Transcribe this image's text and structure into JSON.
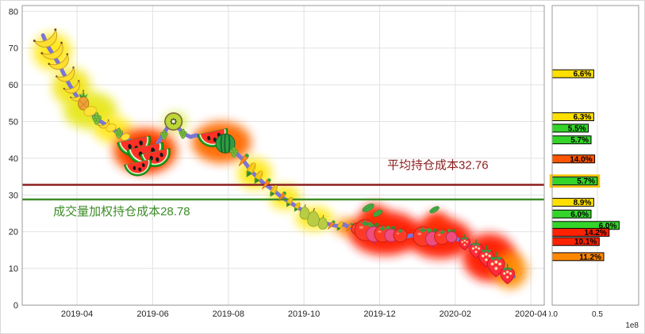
{
  "figure": {
    "bg": "#ffffff",
    "plot_bg": "#ffffff",
    "border_color": "#9a9a9a",
    "grid_color": "#e2e2e2",
    "tick_color": "#262626"
  },
  "chart_data": [
    {
      "name": "price-history-with-fruit-markers",
      "type": "line",
      "title": "",
      "xlabel": "",
      "ylabel": "",
      "ylim": [
        0,
        81.5
      ],
      "y_ticks": [
        0,
        10,
        20,
        30,
        40,
        50,
        60,
        70,
        80
      ],
      "x_ticks": [
        {
          "month": 1,
          "label": "2019-04"
        },
        {
          "month": 3,
          "label": "2019-06"
        },
        {
          "month": 5,
          "label": "2019-08"
        },
        {
          "month": 7,
          "label": "2019-10"
        },
        {
          "month": 9,
          "label": "2019-12"
        },
        {
          "month": 11,
          "label": "2020-02"
        },
        {
          "month": 13,
          "label": "2020-04"
        }
      ],
      "line_color": "#7c74d8",
      "price_line": [
        [
          0.1,
          73.5
        ],
        [
          0.2,
          71
        ],
        [
          0.35,
          68.5
        ],
        [
          0.5,
          66
        ],
        [
          0.65,
          63
        ],
        [
          0.8,
          60
        ],
        [
          0.95,
          57.5
        ],
        [
          1.1,
          55.5
        ],
        [
          1.25,
          53.5
        ],
        [
          1.4,
          52
        ],
        [
          1.55,
          50.5
        ],
        [
          1.7,
          49.5
        ],
        [
          1.85,
          48.5
        ],
        [
          2.0,
          47.5
        ],
        [
          2.15,
          46.5
        ],
        [
          2.3,
          45.5
        ],
        [
          2.5,
          44
        ],
        [
          2.65,
          43
        ],
        [
          2.8,
          42.2
        ],
        [
          2.95,
          41.8
        ],
        [
          3.1,
          43.5
        ],
        [
          3.25,
          46
        ],
        [
          3.4,
          48.5
        ],
        [
          3.55,
          50
        ],
        [
          3.7,
          48
        ],
        [
          3.85,
          46.5
        ],
        [
          4.0,
          45.8
        ],
        [
          4.15,
          46.3
        ],
        [
          4.3,
          45.8
        ],
        [
          4.45,
          45.2
        ],
        [
          4.6,
          45.8
        ],
        [
          4.75,
          46.2
        ],
        [
          4.9,
          44.5
        ],
        [
          5.05,
          43
        ],
        [
          5.2,
          41.5
        ],
        [
          5.35,
          40
        ],
        [
          5.5,
          38
        ],
        [
          5.65,
          36
        ],
        [
          5.8,
          34.5
        ],
        [
          5.95,
          33
        ],
        [
          6.1,
          32
        ],
        [
          6.25,
          30.8
        ],
        [
          6.4,
          29.5
        ],
        [
          6.55,
          28.5
        ],
        [
          6.7,
          27.5
        ],
        [
          6.85,
          26.5
        ],
        [
          7.0,
          25.5
        ],
        [
          7.15,
          24.5
        ],
        [
          7.3,
          23.5
        ],
        [
          7.45,
          22.8
        ],
        [
          7.6,
          22.2
        ],
        [
          7.75,
          21.8
        ],
        [
          7.9,
          21.5
        ],
        [
          8.05,
          22
        ],
        [
          8.2,
          21.2
        ],
        [
          8.35,
          20.8
        ],
        [
          8.5,
          20.5
        ],
        [
          8.65,
          20.2
        ],
        [
          8.8,
          19.8
        ],
        [
          8.95,
          19.4
        ],
        [
          9.1,
          19
        ],
        [
          9.25,
          19.4
        ],
        [
          9.4,
          18.8
        ],
        [
          9.55,
          19.3
        ],
        [
          9.7,
          18.6
        ],
        [
          9.85,
          19
        ],
        [
          10.0,
          18.4
        ],
        [
          10.15,
          18.8
        ],
        [
          10.3,
          18.2
        ],
        [
          10.45,
          18.8
        ],
        [
          10.6,
          18.4
        ],
        [
          10.75,
          19
        ],
        [
          10.9,
          18.5
        ],
        [
          11.05,
          18
        ],
        [
          11.2,
          17.3
        ],
        [
          11.35,
          16.5
        ],
        [
          11.5,
          15.6
        ],
        [
          11.65,
          14.6
        ],
        [
          11.8,
          13.5
        ],
        [
          11.95,
          12.4
        ],
        [
          12.1,
          11.2
        ],
        [
          12.25,
          10
        ],
        [
          12.4,
          8.8
        ],
        [
          12.55,
          7.8
        ]
      ],
      "cost_lines": [
        {
          "id": "avg",
          "label": "平均持仓成本32.76",
          "value": 32.76,
          "color": "#8b1e1e",
          "label_month": 9.2,
          "label_offset": -20
        },
        {
          "id": "vwap",
          "label": "成交量加权持仓成本28.78",
          "value": 28.78,
          "color": "#3c8c28",
          "label_month": 0.37,
          "label_offset": 20
        }
      ],
      "markers": [
        [
          0.15,
          73.5,
          "banana",
          30
        ],
        [
          0.33,
          70,
          "banana",
          28
        ],
        [
          0.5,
          67,
          "banana",
          26
        ],
        [
          0.68,
          63.5,
          "banana",
          24
        ],
        [
          0.85,
          60,
          "banana",
          21
        ],
        [
          1.0,
          57.5,
          "banana",
          18
        ],
        [
          1.17,
          55.5,
          "pineapple",
          22
        ],
        [
          1.35,
          52.8,
          "lemon",
          16
        ],
        [
          1.52,
          51,
          "grapes",
          15
        ],
        [
          1.7,
          49.7,
          "banana",
          14
        ],
        [
          1.9,
          48.3,
          "lemon",
          13
        ],
        [
          2.1,
          47,
          "grapes",
          13
        ],
        [
          2.28,
          45.8,
          "lemon",
          11
        ],
        [
          2.52,
          44,
          "watermelon",
          42
        ],
        [
          2.82,
          42,
          "watermelon",
          46
        ],
        [
          3.08,
          40.8,
          "watermelon",
          38
        ],
        [
          2.62,
          38,
          "watermelon",
          34
        ],
        [
          3.55,
          50,
          "kiwi",
          22
        ],
        [
          3.3,
          46.5,
          "grapes",
          12
        ],
        [
          3.8,
          46.8,
          "grapes",
          12
        ],
        [
          4.6,
          46.2,
          "watermelon",
          38
        ],
        [
          4.92,
          44,
          "melon",
          24
        ],
        [
          5.15,
          41.8,
          "grapes",
          13
        ],
        [
          5.4,
          39.5,
          "carrot",
          18
        ],
        [
          5.6,
          37,
          "corn",
          19
        ],
        [
          5.8,
          35,
          "corn",
          17
        ],
        [
          6.0,
          33,
          "carrot",
          16
        ],
        [
          6.2,
          31.2,
          "corn",
          15
        ],
        [
          6.42,
          29.6,
          "carrot",
          14
        ],
        [
          6.62,
          28.2,
          "corn",
          13
        ],
        [
          6.82,
          26.8,
          "corn",
          12
        ],
        [
          7.02,
          25.3,
          "pear",
          18
        ],
        [
          7.25,
          23.8,
          "pear",
          22
        ],
        [
          7.5,
          22.5,
          "pear",
          17
        ],
        [
          7.72,
          21.8,
          "carrot",
          13
        ],
        [
          7.95,
          21.6,
          "corn",
          12
        ],
        [
          8.2,
          21.2,
          "carrot",
          12
        ],
        [
          8.4,
          20.8,
          "tomato",
          15
        ],
        [
          8.62,
          20.4,
          "tomato",
          28
        ],
        [
          8.85,
          19.6,
          "radish",
          24
        ],
        [
          9.08,
          19.4,
          "tomato",
          22
        ],
        [
          9.3,
          19.2,
          "radish",
          20
        ],
        [
          9.55,
          19,
          "tomato",
          18
        ],
        [
          8.7,
          26.5,
          "leaf",
          16
        ],
        [
          8.95,
          25,
          "leaf",
          13
        ],
        [
          10.15,
          18.7,
          "tomato",
          26
        ],
        [
          10.4,
          18.3,
          "radish",
          22
        ],
        [
          10.65,
          18.6,
          "tomato",
          20
        ],
        [
          10.9,
          18.7,
          "radish",
          17
        ],
        [
          10.45,
          26,
          "leaf",
          13
        ],
        [
          11.25,
          17.2,
          "strawberry",
          20
        ],
        [
          11.55,
          15.4,
          "strawberry",
          24
        ],
        [
          11.82,
          13.4,
          "strawberry",
          28
        ],
        [
          12.08,
          11.2,
          "strawberry",
          32
        ],
        [
          12.38,
          8.6,
          "strawberry",
          26
        ]
      ],
      "blobs": [
        [
          0.35,
          69,
          0.5,
          5,
          "#ffe818",
          0.95
        ],
        [
          0.85,
          59.5,
          0.5,
          5,
          "#f2e416",
          0.93
        ],
        [
          1.35,
          53,
          0.7,
          5,
          "#e6e616",
          0.92
        ],
        [
          1.95,
          47.8,
          0.5,
          3.6,
          "#ffe818",
          0.92
        ],
        [
          3.6,
          49.8,
          0.3,
          2.6,
          "#d6e838",
          0.9
        ],
        [
          2.8,
          42,
          0.85,
          6.2,
          "#ff5400",
          0.96
        ],
        [
          2.8,
          41.5,
          0.5,
          4.4,
          "#ff1c00",
          0.9
        ],
        [
          4.82,
          44.3,
          0.78,
          5.6,
          "#ff6a00",
          0.96
        ],
        [
          5.7,
          35.8,
          0.45,
          4.2,
          "#ffe818",
          0.95
        ],
        [
          6.5,
          29.3,
          0.4,
          3.3,
          "#ffe818",
          0.95
        ],
        [
          7.28,
          23.6,
          0.5,
          3.2,
          "#ffe818",
          0.95
        ],
        [
          8.15,
          21.3,
          0.35,
          2.3,
          "#ff9000",
          0.92
        ],
        [
          9.15,
          19.6,
          0.95,
          6.0,
          "#ff1c00",
          0.96
        ],
        [
          8.85,
          24,
          0.35,
          3.5,
          "#ff2a00",
          0.9
        ],
        [
          10.6,
          18.2,
          0.85,
          5.5,
          "#ff1c00",
          0.96
        ],
        [
          10.5,
          22.5,
          0.3,
          3,
          "#ff2a00",
          0.9
        ],
        [
          11.9,
          13,
          0.7,
          6.5,
          "#ff1c00",
          0.96
        ],
        [
          12.45,
          9.5,
          0.45,
          5,
          "#ff8c00",
          0.92
        ]
      ]
    },
    {
      "name": "holding-cost-distribution",
      "type": "bar",
      "orientation": "horizontal",
      "xlim": [
        0,
        0.95
      ],
      "x_ticks": [
        {
          "v": 0,
          "label": "0.0"
        },
        {
          "v": 0.5,
          "label": "0.5"
        }
      ],
      "scale_note": "1e8",
      "bars": [
        {
          "price": 63.0,
          "share": "6.6%",
          "volume": 0.46,
          "color": "#ffdf00",
          "highlight": false
        },
        {
          "price": 51.3,
          "share": "6.3%",
          "volume": 0.46,
          "color": "#ffdf00",
          "highlight": false
        },
        {
          "price": 48.2,
          "share": "5.5%",
          "volume": 0.4,
          "color": "#35d42a",
          "highlight": false
        },
        {
          "price": 45.0,
          "share": "5.7%",
          "volume": 0.43,
          "color": "#35d42a",
          "highlight": false
        },
        {
          "price": 39.8,
          "share": "14.0%",
          "volume": 0.47,
          "color": "#ff5400",
          "highlight": false
        },
        {
          "price": 33.8,
          "share": "5.7%",
          "volume": 0.5,
          "color": "#35d42a",
          "highlight": true
        },
        {
          "price": 28.0,
          "share": "8.9%",
          "volume": 0.46,
          "color": "#ffdf00",
          "highlight": false
        },
        {
          "price": 24.8,
          "share": "6.0%",
          "volume": 0.43,
          "color": "#35d42a",
          "highlight": false
        },
        {
          "price": 21.7,
          "share": "6.0%",
          "volume": 0.74,
          "color": "#35d42a",
          "highlight": false
        },
        {
          "price": 19.8,
          "share": "14.2%",
          "volume": 0.63,
          "color": "#ff2200",
          "highlight": false
        },
        {
          "price": 17.3,
          "share": "10.1%",
          "volume": 0.52,
          "color": "#ff2200",
          "highlight": false
        },
        {
          "price": 13.2,
          "share": "11.2%",
          "volume": 0.57,
          "color": "#ff8800",
          "highlight": false
        }
      ]
    }
  ]
}
